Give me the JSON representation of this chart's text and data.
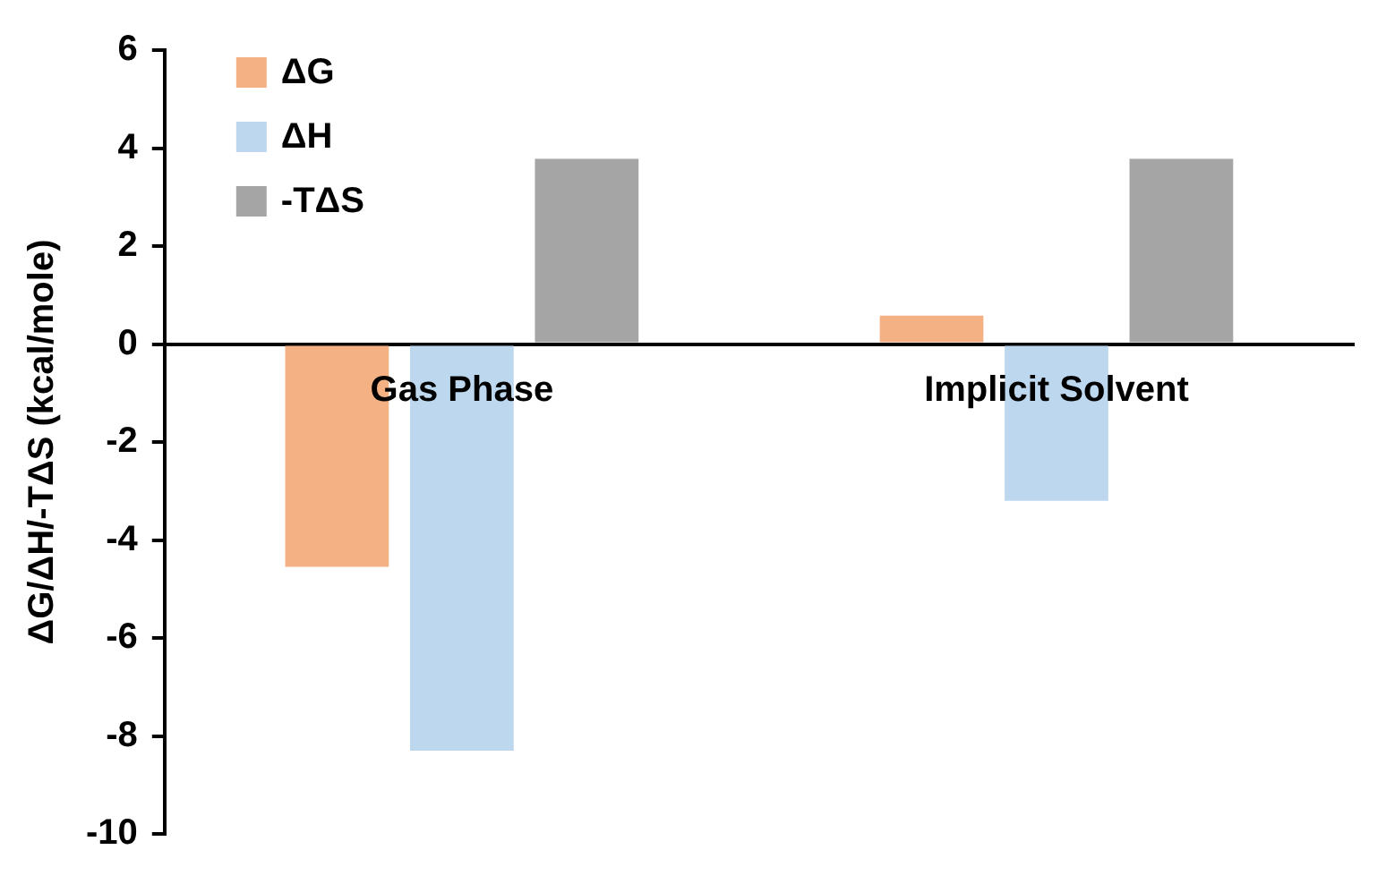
{
  "chart_data": {
    "type": "bar",
    "ylabel": "ΔG/ΔH/-TΔS (kcal/mole)",
    "categories": [
      "Gas Phase",
      "Implicit Solvent"
    ],
    "series": [
      {
        "name": "ΔG",
        "color": "#f4b183",
        "values": [
          -4.55,
          0.58
        ]
      },
      {
        "name": "ΔH",
        "color": "#bdd7ee",
        "values": [
          -8.3,
          -3.2
        ]
      },
      {
        "name": "-TΔS",
        "color": "#a5a5a5",
        "values": [
          3.78,
          3.78
        ]
      }
    ],
    "ylim": [
      -10,
      6
    ],
    "yticks": [
      -10,
      -8,
      -6,
      -4,
      -2,
      0,
      2,
      4,
      6
    ],
    "grid": false,
    "legend": "top left"
  }
}
